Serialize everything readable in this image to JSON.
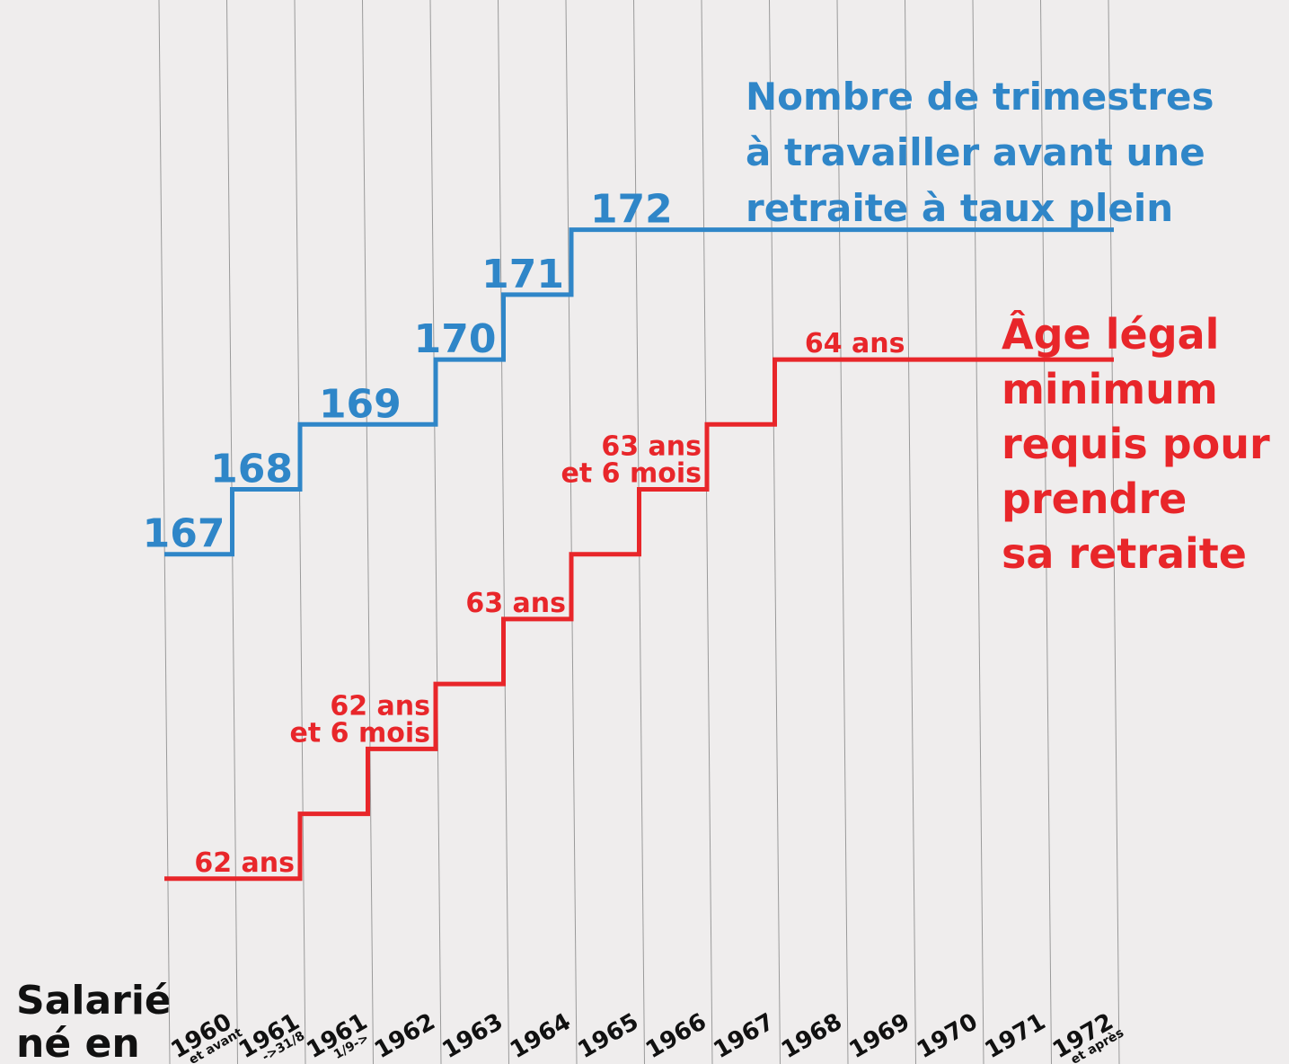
{
  "chart_data": {
    "type": "step",
    "x_label": [
      "Salarié",
      "né en"
    ],
    "categories": [
      "1960",
      "1961",
      "1961",
      "1962",
      "1963",
      "1964",
      "1965",
      "1966",
      "1967",
      "1968",
      "1969",
      "1970",
      "1971",
      "1972"
    ],
    "category_notes": [
      "et avant",
      "->31/8",
      "1/9->",
      null,
      null,
      null,
      null,
      null,
      null,
      null,
      null,
      null,
      null,
      "et après"
    ],
    "ylim": [
      61.75,
      65.25
    ],
    "y2lim": [
      161,
      175
    ],
    "grid": true,
    "series": [
      {
        "label": [
          "Nombre de trimestres",
          "à travailler avant une",
          "retraite à taux plein"
        ],
        "color": "#2f86c8",
        "axis": "y2",
        "values": [
          167,
          168,
          169,
          169,
          170,
          171,
          172,
          172,
          172,
          172,
          172,
          172,
          172,
          172
        ]
      },
      {
        "label": [
          "Âge légal",
          "minimum",
          "requis pour",
          "prendre",
          "sa retraite"
        ],
        "color": "#e8262a",
        "values": [
          62,
          62,
          62.25,
          62.5,
          62.75,
          63,
          63.25,
          63.5,
          63.75,
          64,
          64,
          64,
          64,
          64
        ],
        "value_labels": [
          [
            "62 ans"
          ],
          null,
          null,
          [
            "62 ans",
            "et 6 mois"
          ],
          null,
          [
            "63 ans"
          ],
          null,
          [
            "63 ans",
            "et 6 mois"
          ],
          null,
          [
            "64 ans"
          ],
          null,
          null,
          null,
          null
        ]
      }
    ]
  }
}
